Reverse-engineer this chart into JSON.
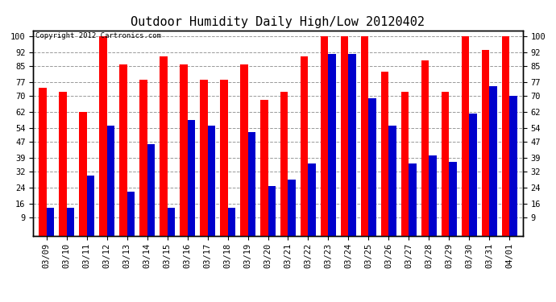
{
  "title": "Outdoor Humidity Daily High/Low 20120402",
  "copyright": "Copyright 2012 Cartronics.com",
  "dates": [
    "03/09",
    "03/10",
    "03/11",
    "03/12",
    "03/13",
    "03/14",
    "03/15",
    "03/16",
    "03/17",
    "03/18",
    "03/19",
    "03/20",
    "03/21",
    "03/22",
    "03/23",
    "03/24",
    "03/25",
    "03/26",
    "03/27",
    "03/28",
    "03/29",
    "03/30",
    "03/31",
    "04/01"
  ],
  "highs": [
    74,
    72,
    62,
    100,
    86,
    78,
    90,
    86,
    78,
    78,
    86,
    68,
    72,
    90,
    100,
    100,
    100,
    82,
    72,
    88,
    72,
    100,
    93,
    100
  ],
  "lows": [
    14,
    14,
    30,
    55,
    22,
    46,
    14,
    58,
    55,
    14,
    52,
    25,
    28,
    36,
    91,
    91,
    69,
    55,
    36,
    40,
    37,
    61,
    75,
    70
  ],
  "high_color": "#ff0000",
  "low_color": "#0000cc",
  "bg_color": "#ffffff",
  "plot_bg_color": "#ffffff",
  "grid_color": "#999999",
  "yticks": [
    9,
    16,
    24,
    32,
    39,
    47,
    54,
    62,
    70,
    77,
    85,
    92,
    100
  ],
  "ymin": 0,
  "ymax": 103,
  "bar_width": 0.38,
  "title_fontsize": 11,
  "axis_fontsize": 7.5,
  "copyright_fontsize": 6.5
}
